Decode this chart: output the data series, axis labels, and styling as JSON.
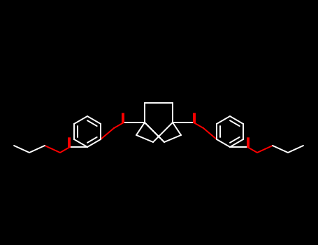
{
  "bg_color": "#000000",
  "bond_color": "#ffffff",
  "O_color": "#ff0000",
  "figsize": [
    4.55,
    3.5
  ],
  "dpi": 100
}
